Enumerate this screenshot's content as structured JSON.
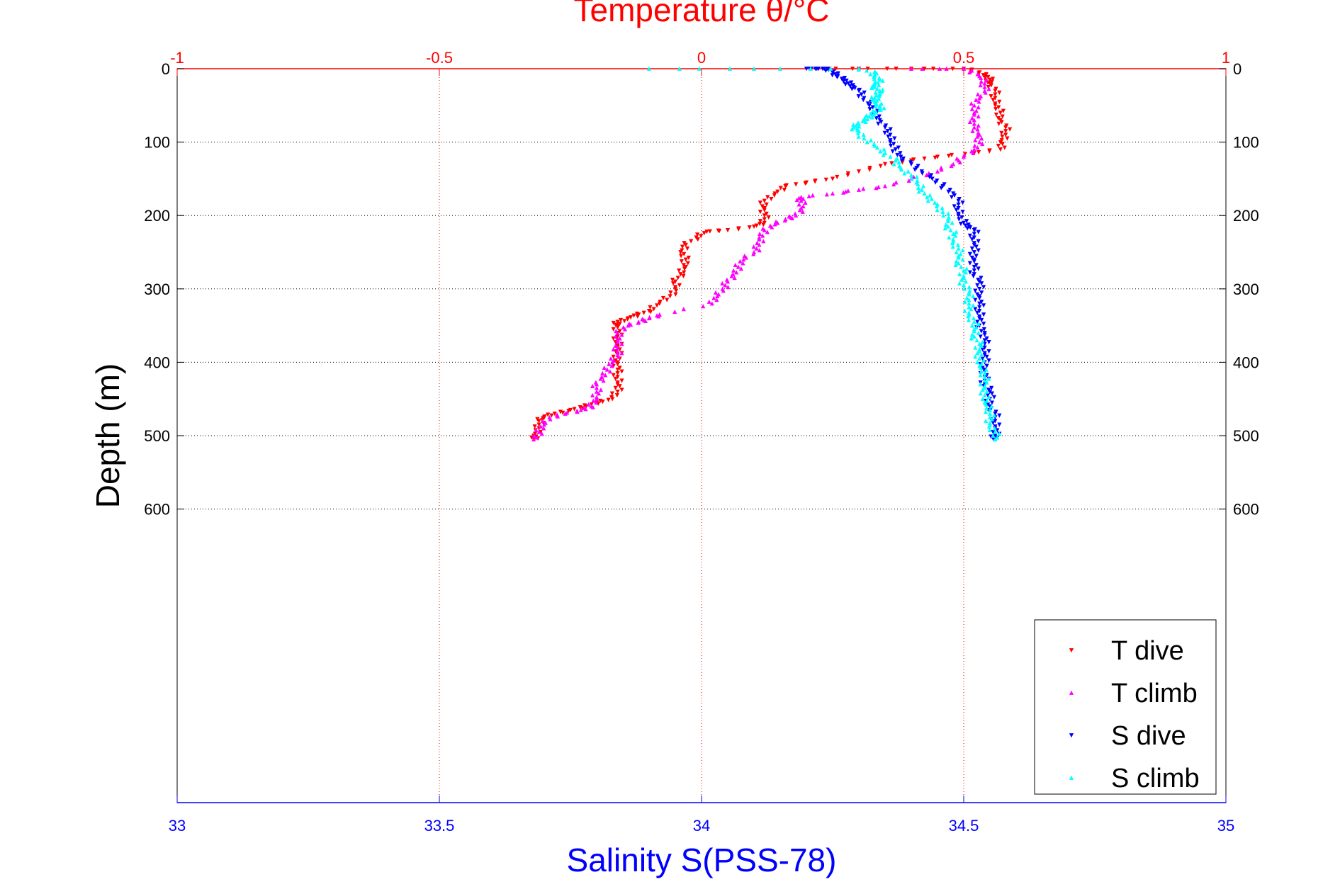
{
  "chart_data": {
    "type": "scatter",
    "title": "Temperature θ/°C",
    "xlabel": "Salinity S(PSS-78)",
    "ylabel": "Depth (m)",
    "temperature_axis": {
      "label": "Temperature θ/°C",
      "range": [
        -1,
        1
      ],
      "ticks": [
        -1,
        -0.5,
        0,
        0.5,
        1
      ],
      "tick_labels": [
        "-1",
        "-0.5",
        "0",
        "0.5",
        "1"
      ],
      "color": "#ff0000",
      "position": "top"
    },
    "salinity_axis": {
      "label": "Salinity S(PSS-78)",
      "range": [
        33,
        35
      ],
      "ticks": [
        33,
        33.5,
        34,
        34.5,
        35
      ],
      "tick_labels": [
        "33",
        "33.5",
        "34",
        "34.5",
        "35"
      ],
      "color": "#0000ff",
      "position": "bottom"
    },
    "depth_axis": {
      "label": "Depth (m)",
      "range": [
        0,
        1000
      ],
      "reversed": true,
      "ticks": [
        0,
        100,
        200,
        300,
        400,
        500,
        600
      ],
      "tick_labels": [
        "0",
        "100",
        "200",
        "300",
        "400",
        "500",
        "600"
      ]
    },
    "grid": true,
    "legend": {
      "position": "bottom-right",
      "entries": [
        "T dive",
        "T climb",
        "S dive",
        "S climb"
      ]
    },
    "series": [
      {
        "name": "T dive",
        "axis": "temperature",
        "marker": "triangle-down",
        "color": "#ff0000",
        "points": [
          [
            0.22,
            0
          ],
          [
            0.3,
            0
          ],
          [
            0.4,
            0
          ],
          [
            0.5,
            0
          ],
          [
            0.53,
            5
          ],
          [
            0.54,
            10
          ],
          [
            0.55,
            15
          ],
          [
            0.55,
            20
          ],
          [
            0.56,
            30
          ],
          [
            0.56,
            40
          ],
          [
            0.56,
            50
          ],
          [
            0.57,
            60
          ],
          [
            0.57,
            70
          ],
          [
            0.58,
            80
          ],
          [
            0.58,
            90
          ],
          [
            0.57,
            100
          ],
          [
            0.57,
            110
          ],
          [
            0.52,
            115
          ],
          [
            0.45,
            120
          ],
          [
            0.4,
            125
          ],
          [
            0.35,
            130
          ],
          [
            0.3,
            140
          ],
          [
            0.25,
            150
          ],
          [
            0.2,
            155
          ],
          [
            0.16,
            160
          ],
          [
            0.14,
            170
          ],
          [
            0.12,
            180
          ],
          [
            0.12,
            190
          ],
          [
            0.12,
            200
          ],
          [
            0.12,
            210
          ],
          [
            0.1,
            215
          ],
          [
            0.05,
            220
          ],
          [
            0.01,
            222
          ],
          [
            -0.01,
            230
          ],
          [
            -0.03,
            240
          ],
          [
            -0.04,
            250
          ],
          [
            -0.03,
            260
          ],
          [
            -0.03,
            270
          ],
          [
            -0.04,
            280
          ],
          [
            -0.05,
            290
          ],
          [
            -0.05,
            300
          ],
          [
            -0.06,
            310
          ],
          [
            -0.08,
            320
          ],
          [
            -0.1,
            330
          ],
          [
            -0.12,
            335
          ],
          [
            -0.14,
            340
          ],
          [
            -0.16,
            345
          ],
          [
            -0.16,
            350
          ],
          [
            -0.16,
            360
          ],
          [
            -0.16,
            370
          ],
          [
            -0.16,
            380
          ],
          [
            -0.16,
            390
          ],
          [
            -0.16,
            400
          ],
          [
            -0.16,
            410
          ],
          [
            -0.16,
            420
          ],
          [
            -0.16,
            430
          ],
          [
            -0.16,
            440
          ],
          [
            -0.17,
            450
          ],
          [
            -0.2,
            455
          ],
          [
            -0.22,
            460
          ],
          [
            -0.25,
            465
          ],
          [
            -0.28,
            470
          ],
          [
            -0.3,
            475
          ],
          [
            -0.31,
            480
          ],
          [
            -0.31,
            490
          ],
          [
            -0.32,
            500
          ],
          [
            -0.32,
            505
          ]
        ]
      },
      {
        "name": "T climb",
        "axis": "temperature",
        "marker": "triangle-up",
        "color": "#ff00ff",
        "points": [
          [
            -0.32,
            505
          ],
          [
            -0.31,
            495
          ],
          [
            -0.3,
            485
          ],
          [
            -0.29,
            475
          ],
          [
            -0.26,
            470
          ],
          [
            -0.23,
            465
          ],
          [
            -0.21,
            460
          ],
          [
            -0.2,
            450
          ],
          [
            -0.2,
            440
          ],
          [
            -0.2,
            430
          ],
          [
            -0.19,
            420
          ],
          [
            -0.18,
            410
          ],
          [
            -0.17,
            400
          ],
          [
            -0.16,
            390
          ],
          [
            -0.16,
            380
          ],
          [
            -0.16,
            370
          ],
          [
            -0.16,
            360
          ],
          [
            -0.14,
            350
          ],
          [
            -0.12,
            345
          ],
          [
            -0.1,
            340
          ],
          [
            -0.08,
            335
          ],
          [
            0.02,
            320
          ],
          [
            0.03,
            310
          ],
          [
            0.04,
            300
          ],
          [
            0.05,
            290
          ],
          [
            0.06,
            280
          ],
          [
            0.07,
            270
          ],
          [
            0.08,
            260
          ],
          [
            0.1,
            250
          ],
          [
            0.11,
            240
          ],
          [
            0.11,
            230
          ],
          [
            0.12,
            220
          ],
          [
            0.14,
            212
          ],
          [
            0.16,
            205
          ],
          [
            0.18,
            200
          ],
          [
            0.19,
            190
          ],
          [
            0.19,
            180
          ],
          [
            0.19,
            175
          ],
          [
            0.25,
            170
          ],
          [
            0.3,
            165
          ],
          [
            0.35,
            160
          ],
          [
            0.4,
            150
          ],
          [
            0.45,
            140
          ],
          [
            0.48,
            130
          ],
          [
            0.5,
            120
          ],
          [
            0.52,
            110
          ],
          [
            0.53,
            100
          ],
          [
            0.53,
            90
          ],
          [
            0.52,
            80
          ],
          [
            0.52,
            70
          ],
          [
            0.52,
            60
          ],
          [
            0.52,
            50
          ],
          [
            0.53,
            40
          ],
          [
            0.54,
            30
          ],
          [
            0.54,
            20
          ],
          [
            0.53,
            10
          ],
          [
            0.5,
            0
          ],
          [
            0.4,
            0
          ]
        ]
      },
      {
        "name": "S dive",
        "axis": "salinity",
        "marker": "triangle-down",
        "color": "#0000ff",
        "points": [
          [
            34.2,
            0
          ],
          [
            34.22,
            0
          ],
          [
            34.24,
            0
          ],
          [
            34.25,
            5
          ],
          [
            34.26,
            10
          ],
          [
            34.27,
            15
          ],
          [
            34.28,
            20
          ],
          [
            34.29,
            25
          ],
          [
            34.3,
            30
          ],
          [
            34.31,
            40
          ],
          [
            34.32,
            50
          ],
          [
            34.33,
            60
          ],
          [
            34.34,
            70
          ],
          [
            34.35,
            80
          ],
          [
            34.36,
            90
          ],
          [
            34.36,
            100
          ],
          [
            34.37,
            110
          ],
          [
            34.38,
            120
          ],
          [
            34.4,
            130
          ],
          [
            34.42,
            140
          ],
          [
            34.44,
            150
          ],
          [
            34.46,
            160
          ],
          [
            34.48,
            170
          ],
          [
            34.49,
            180
          ],
          [
            34.49,
            190
          ],
          [
            34.49,
            200
          ],
          [
            34.5,
            210
          ],
          [
            34.51,
            215
          ],
          [
            34.52,
            220
          ],
          [
            34.52,
            230
          ],
          [
            34.52,
            240
          ],
          [
            34.52,
            250
          ],
          [
            34.52,
            260
          ],
          [
            34.52,
            270
          ],
          [
            34.52,
            280
          ],
          [
            34.53,
            290
          ],
          [
            34.53,
            300
          ],
          [
            34.53,
            310
          ],
          [
            34.53,
            320
          ],
          [
            34.53,
            330
          ],
          [
            34.53,
            340
          ],
          [
            34.53,
            350
          ],
          [
            34.54,
            360
          ],
          [
            34.54,
            370
          ],
          [
            34.54,
            380
          ],
          [
            34.54,
            390
          ],
          [
            34.54,
            400
          ],
          [
            34.54,
            410
          ],
          [
            34.54,
            420
          ],
          [
            34.54,
            430
          ],
          [
            34.55,
            440
          ],
          [
            34.55,
            450
          ],
          [
            34.55,
            460
          ],
          [
            34.56,
            470
          ],
          [
            34.56,
            480
          ],
          [
            34.56,
            490
          ],
          [
            34.56,
            500
          ],
          [
            34.56,
            505
          ]
        ]
      },
      {
        "name": "S climb",
        "axis": "salinity",
        "marker": "triangle-up",
        "color": "#00ffff",
        "points": [
          [
            34.56,
            505
          ],
          [
            34.56,
            495
          ],
          [
            34.55,
            485
          ],
          [
            34.55,
            475
          ],
          [
            34.55,
            465
          ],
          [
            34.54,
            455
          ],
          [
            34.54,
            445
          ],
          [
            34.54,
            435
          ],
          [
            34.54,
            425
          ],
          [
            34.54,
            415
          ],
          [
            34.53,
            405
          ],
          [
            34.53,
            395
          ],
          [
            34.53,
            385
          ],
          [
            34.53,
            375
          ],
          [
            34.52,
            365
          ],
          [
            34.52,
            355
          ],
          [
            34.52,
            345
          ],
          [
            34.51,
            335
          ],
          [
            34.51,
            325
          ],
          [
            34.51,
            315
          ],
          [
            34.51,
            305
          ],
          [
            34.5,
            295
          ],
          [
            34.5,
            285
          ],
          [
            34.5,
            275
          ],
          [
            34.49,
            265
          ],
          [
            34.49,
            255
          ],
          [
            34.49,
            245
          ],
          [
            34.48,
            235
          ],
          [
            34.48,
            225
          ],
          [
            34.47,
            215
          ],
          [
            34.47,
            205
          ],
          [
            34.46,
            195
          ],
          [
            34.45,
            185
          ],
          [
            34.43,
            175
          ],
          [
            34.42,
            165
          ],
          [
            34.41,
            155
          ],
          [
            34.4,
            145
          ],
          [
            34.38,
            135
          ],
          [
            34.37,
            125
          ],
          [
            34.35,
            115
          ],
          [
            34.33,
            105
          ],
          [
            34.31,
            95
          ],
          [
            34.3,
            85
          ],
          [
            34.29,
            80
          ],
          [
            34.3,
            75
          ],
          [
            34.31,
            70
          ],
          [
            34.32,
            65
          ],
          [
            34.33,
            60
          ],
          [
            34.34,
            55
          ],
          [
            34.34,
            50
          ],
          [
            34.33,
            45
          ],
          [
            34.33,
            40
          ],
          [
            34.34,
            35
          ],
          [
            34.34,
            30
          ],
          [
            34.33,
            25
          ],
          [
            34.33,
            20
          ],
          [
            34.34,
            15
          ],
          [
            34.33,
            10
          ],
          [
            34.33,
            5
          ],
          [
            34.3,
            0
          ],
          [
            34.1,
            0
          ],
          [
            33.9,
            0
          ]
        ]
      }
    ]
  }
}
